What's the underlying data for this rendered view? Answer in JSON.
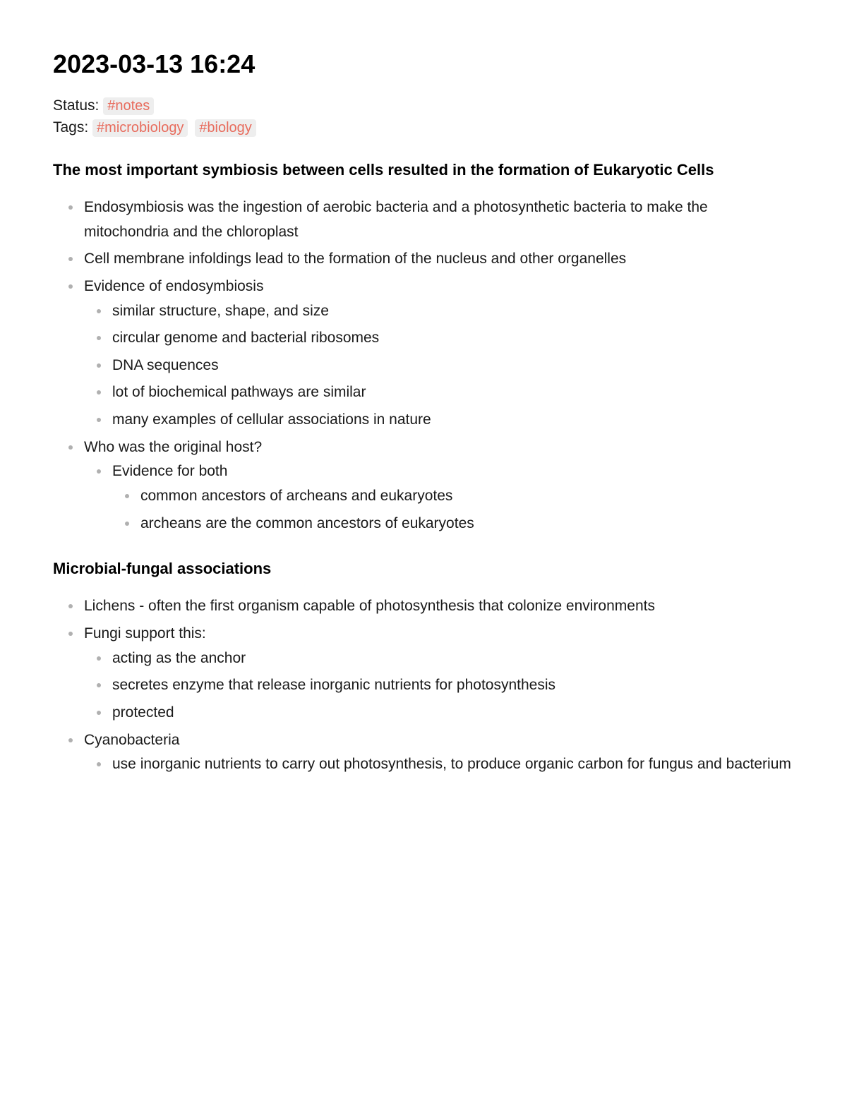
{
  "title": "2023-03-13 16:24",
  "status": {
    "label": "Status:",
    "tag": "#notes"
  },
  "tags": {
    "label": "Tags:",
    "items": [
      "#microbiology",
      "#biology"
    ]
  },
  "sections": [
    {
      "heading": "The most important symbiosis between cells resulted in the formation of Eukaryotic Cells",
      "items": [
        {
          "text": "Endosymbiosis was the ingestion of aerobic bacteria and a photosynthetic bacteria to make the mitochondria and the chloroplast"
        },
        {
          "text": "Cell membrane infoldings lead to the formation of the nucleus and other organelles"
        },
        {
          "text": "Evidence of endosymbiosis",
          "children": [
            {
              "text": "similar structure, shape, and size"
            },
            {
              "text": "circular genome and bacterial ribosomes"
            },
            {
              "text": "DNA sequences"
            },
            {
              "text": "lot of biochemical pathways are similar"
            },
            {
              "text": "many examples of cellular associations in nature"
            }
          ]
        },
        {
          "text": "Who was the original host?",
          "children": [
            {
              "text": "Evidence for both",
              "children": [
                {
                  "text": "common ancestors of archeans and eukaryotes"
                },
                {
                  "text": "archeans are the common ancestors of eukaryotes"
                }
              ]
            }
          ]
        }
      ]
    },
    {
      "heading": "Microbial-fungal associations",
      "items": [
        {
          "text": "Lichens - often the first organism capable of photosynthesis that colonize environments"
        },
        {
          "text": "Fungi support this:",
          "children": [
            {
              "text": "acting as the anchor"
            },
            {
              "text": "secretes enzyme that release inorganic nutrients for photosynthesis"
            },
            {
              "text": "protected"
            }
          ]
        },
        {
          "text": "Cyanobacteria",
          "children": [
            {
              "text": "use inorganic nutrients to carry out photosynthesis, to produce organic carbon for fungus and bacterium"
            }
          ]
        }
      ]
    }
  ],
  "styles": {
    "background_color": "#ffffff",
    "text_color": "#1a1a1a",
    "bullet_color": "#b0b0b0",
    "tag_bg": "#eeeeee",
    "tag_fg": "#e86c5d",
    "title_fontsize": 36,
    "heading_fontsize": 22,
    "body_fontsize": 21,
    "tag_fontsize": 20
  }
}
